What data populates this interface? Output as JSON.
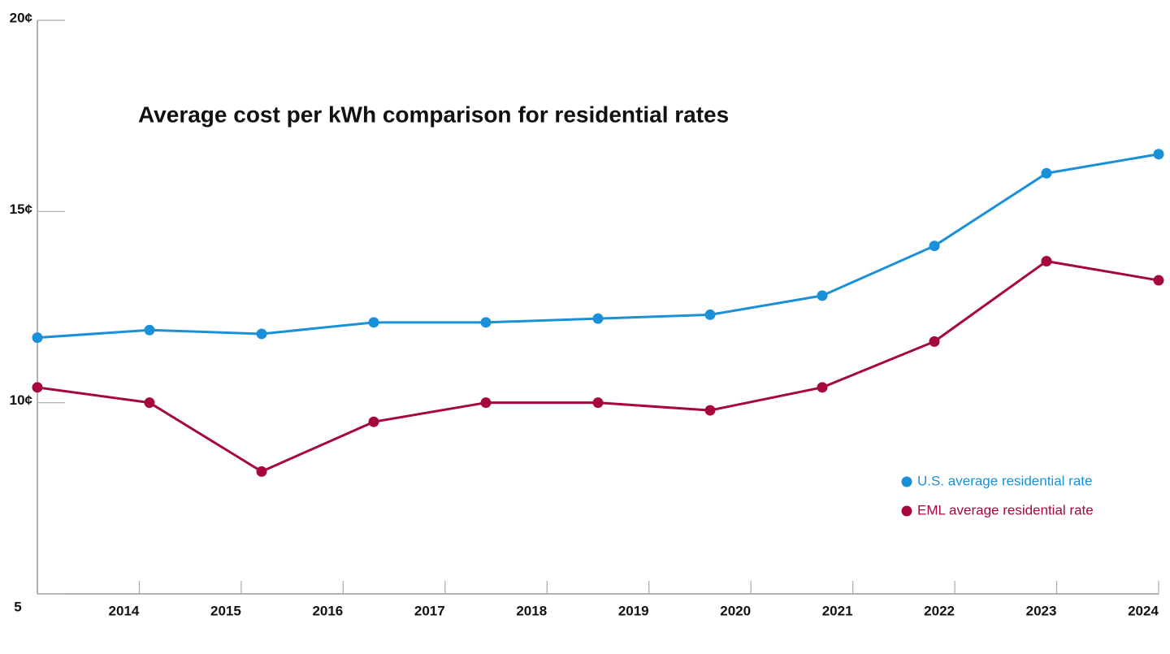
{
  "chart_data": {
    "type": "line",
    "title": "Average cost per kWh comparison for residential rates",
    "categories": [
      "2014",
      "2015",
      "2016",
      "2017",
      "2018",
      "2019",
      "2020",
      "2021",
      "2022",
      "2023",
      "2024"
    ],
    "series": [
      {
        "name": "U.S. average residential rate",
        "color": "#1a90d9",
        "values": [
          11.7,
          11.9,
          11.8,
          12.1,
          12.1,
          12.2,
          12.3,
          12.8,
          14.1,
          16.0,
          16.5
        ]
      },
      {
        "name": "EML average residential rate",
        "color": "#a6073f",
        "values": [
          10.4,
          10.0,
          8.2,
          9.5,
          10.0,
          10.0,
          9.8,
          10.4,
          11.6,
          13.7,
          13.2
        ]
      }
    ],
    "ylim": [
      5,
      20
    ],
    "yticks": [
      5,
      {
        "value": 10,
        "label": "10¢"
      },
      {
        "value": 15,
        "label": "15¢"
      },
      {
        "value": 20,
        "label": "20¢"
      }
    ],
    "legend": "lower right"
  }
}
